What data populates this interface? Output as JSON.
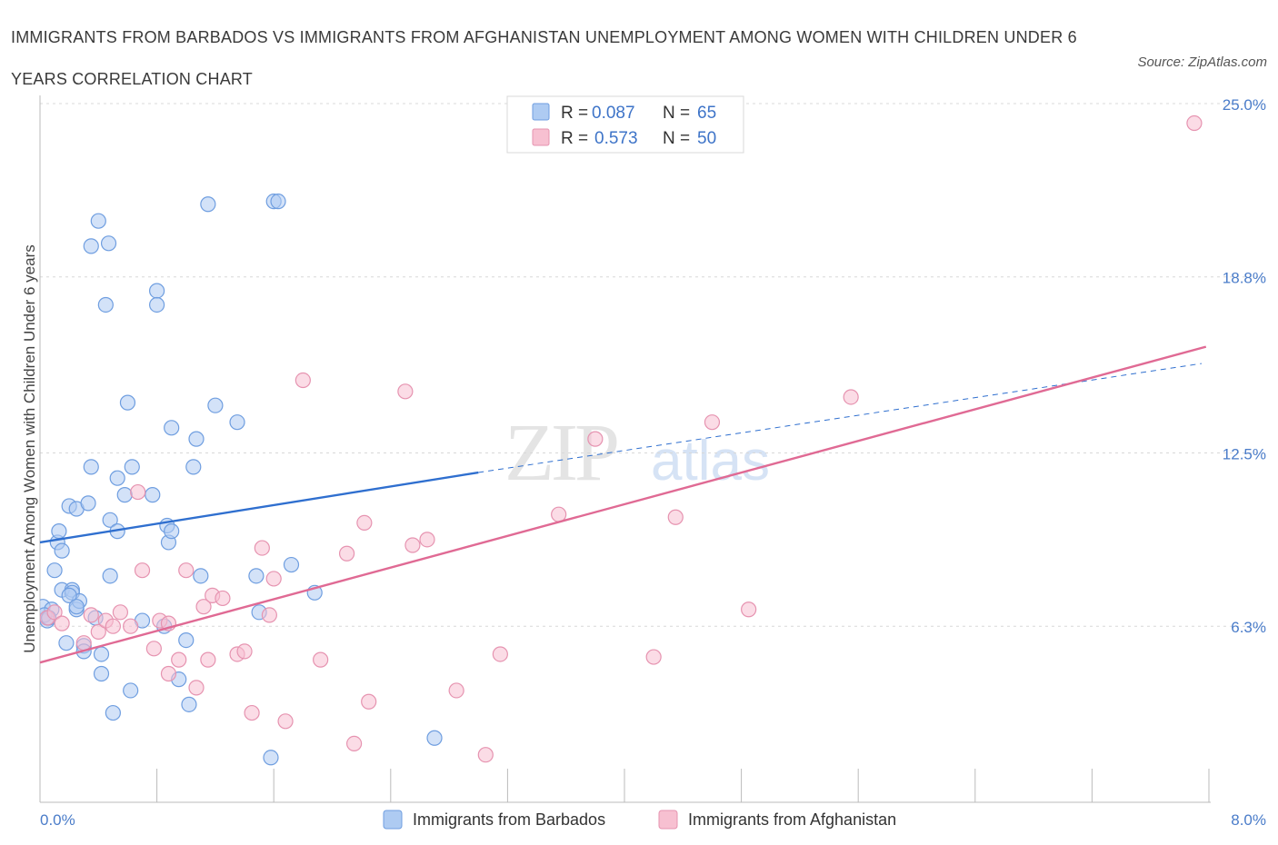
{
  "title": "IMMIGRANTS FROM BARBADOS VS IMMIGRANTS FROM AFGHANISTAN UNEMPLOYMENT AMONG WOMEN WITH CHILDREN UNDER 6 YEARS CORRELATION CHART",
  "source": "Source: ZipAtlas.com",
  "watermark": {
    "zip": "ZIP",
    "atlas": "atlas"
  },
  "colors": {
    "barbados_fill": "#aecbf2",
    "barbados_stroke": "#6f9ee0",
    "barbados_line": "#2f6fcf",
    "afghanistan_fill": "#f7c0d1",
    "afghanistan_stroke": "#e693b0",
    "afghanistan_line": "#e06a94",
    "tick_label": "#4a7cc9",
    "grid": "#d8d8d8"
  },
  "legend_top": [
    {
      "r_label": "R = ",
      "r_value": "0.087",
      "n_label": "N = ",
      "n_value": "65"
    },
    {
      "r_label": "R = ",
      "r_value": "0.573",
      "n_label": "N = ",
      "n_value": "50"
    }
  ],
  "legend_bottom": [
    "Immigrants from Barbados",
    "Immigrants from Afghanistan"
  ],
  "chart_data": {
    "type": "scatter",
    "ylabel": "Unemployment Among Women with Children Under 6 years",
    "xlim": [
      0,
      8.0
    ],
    "ylim": [
      0,
      25.0
    ],
    "x_tick_labels": [
      "0.0%",
      "8.0%"
    ],
    "y_ticks": [
      6.3,
      12.5,
      18.8,
      25.0
    ],
    "y_tick_labels": [
      "6.3%",
      "12.5%",
      "18.8%",
      "25.0%"
    ],
    "grid": true,
    "series": [
      {
        "name": "Immigrants from Barbados",
        "points": [
          [
            0.02,
            7.0
          ],
          [
            0.05,
            6.5
          ],
          [
            0.08,
            6.9
          ],
          [
            0.1,
            8.3
          ],
          [
            0.12,
            9.3
          ],
          [
            0.13,
            9.7
          ],
          [
            0.15,
            9.0
          ],
          [
            0.15,
            7.6
          ],
          [
            0.18,
            5.7
          ],
          [
            0.2,
            10.6
          ],
          [
            0.22,
            7.6
          ],
          [
            0.22,
            7.5
          ],
          [
            0.25,
            10.5
          ],
          [
            0.25,
            6.9
          ],
          [
            0.27,
            7.2
          ],
          [
            0.3,
            5.6
          ],
          [
            0.3,
            5.4
          ],
          [
            0.33,
            10.7
          ],
          [
            0.35,
            12.0
          ],
          [
            0.35,
            19.9
          ],
          [
            0.38,
            6.6
          ],
          [
            0.4,
            20.8
          ],
          [
            0.42,
            5.3
          ],
          [
            0.42,
            4.6
          ],
          [
            0.45,
            17.8
          ],
          [
            0.47,
            20.0
          ],
          [
            0.48,
            8.1
          ],
          [
            0.48,
            10.1
          ],
          [
            0.5,
            3.2
          ],
          [
            0.53,
            11.6
          ],
          [
            0.53,
            9.7
          ],
          [
            0.58,
            11.0
          ],
          [
            0.6,
            14.3
          ],
          [
            0.62,
            4.0
          ],
          [
            0.63,
            12.0
          ],
          [
            0.77,
            11.0
          ],
          [
            0.8,
            18.3
          ],
          [
            0.8,
            17.8
          ],
          [
            0.85,
            6.3
          ],
          [
            0.87,
            9.9
          ],
          [
            0.88,
            9.3
          ],
          [
            0.9,
            9.7
          ],
          [
            0.9,
            13.4
          ],
          [
            0.95,
            4.4
          ],
          [
            1.0,
            5.8
          ],
          [
            1.02,
            3.5
          ],
          [
            1.05,
            12.0
          ],
          [
            1.07,
            13.0
          ],
          [
            1.1,
            8.1
          ],
          [
            1.15,
            21.4
          ],
          [
            1.2,
            14.2
          ],
          [
            1.35,
            13.6
          ],
          [
            1.48,
            8.1
          ],
          [
            1.5,
            6.8
          ],
          [
            1.58,
            1.6
          ],
          [
            1.6,
            21.5
          ],
          [
            1.63,
            21.5
          ],
          [
            1.72,
            8.5
          ],
          [
            1.88,
            7.5
          ],
          [
            2.7,
            2.3
          ],
          [
            0.03,
            6.7
          ],
          [
            0.06,
            6.6
          ],
          [
            0.2,
            7.4
          ],
          [
            0.25,
            7.0
          ],
          [
            0.7,
            6.5
          ]
        ]
      },
      {
        "name": "Immigrants from Afghanistan",
        "points": [
          [
            0.05,
            6.6
          ],
          [
            0.1,
            6.8
          ],
          [
            0.15,
            6.4
          ],
          [
            0.3,
            5.7
          ],
          [
            0.35,
            6.7
          ],
          [
            0.4,
            6.1
          ],
          [
            0.45,
            6.5
          ],
          [
            0.5,
            6.3
          ],
          [
            0.55,
            6.8
          ],
          [
            0.62,
            6.3
          ],
          [
            0.67,
            11.1
          ],
          [
            0.7,
            8.3
          ],
          [
            0.78,
            5.5
          ],
          [
            0.82,
            6.5
          ],
          [
            0.88,
            6.4
          ],
          [
            0.88,
            4.6
          ],
          [
            0.95,
            5.1
          ],
          [
            1.0,
            8.3
          ],
          [
            1.07,
            4.1
          ],
          [
            1.12,
            7.0
          ],
          [
            1.15,
            5.1
          ],
          [
            1.18,
            7.4
          ],
          [
            1.25,
            7.3
          ],
          [
            1.35,
            5.3
          ],
          [
            1.4,
            5.4
          ],
          [
            1.45,
            3.2
          ],
          [
            1.52,
            9.1
          ],
          [
            1.57,
            6.7
          ],
          [
            1.6,
            8.0
          ],
          [
            1.68,
            2.9
          ],
          [
            1.8,
            15.1
          ],
          [
            1.92,
            5.1
          ],
          [
            2.1,
            8.9
          ],
          [
            2.15,
            2.1
          ],
          [
            2.22,
            10.0
          ],
          [
            2.25,
            3.6
          ],
          [
            2.5,
            14.7
          ],
          [
            2.55,
            9.2
          ],
          [
            2.65,
            9.4
          ],
          [
            2.85,
            4.0
          ],
          [
            3.05,
            1.7
          ],
          [
            3.15,
            5.3
          ],
          [
            3.55,
            10.3
          ],
          [
            3.8,
            13.0
          ],
          [
            4.2,
            5.2
          ],
          [
            4.35,
            10.2
          ],
          [
            4.6,
            13.6
          ],
          [
            4.85,
            6.9
          ],
          [
            5.55,
            14.5
          ],
          [
            7.9,
            24.3
          ]
        ]
      }
    ],
    "trend_lines": [
      {
        "series": "Immigrants from Barbados",
        "solid_from": [
          0,
          9.3
        ],
        "solid_to": [
          3.0,
          11.8
        ],
        "dashed_to": [
          7.95,
          15.7
        ]
      },
      {
        "series": "Immigrants from Afghanistan",
        "from": [
          0,
          5.0
        ],
        "to": [
          7.98,
          16.3
        ]
      }
    ]
  }
}
